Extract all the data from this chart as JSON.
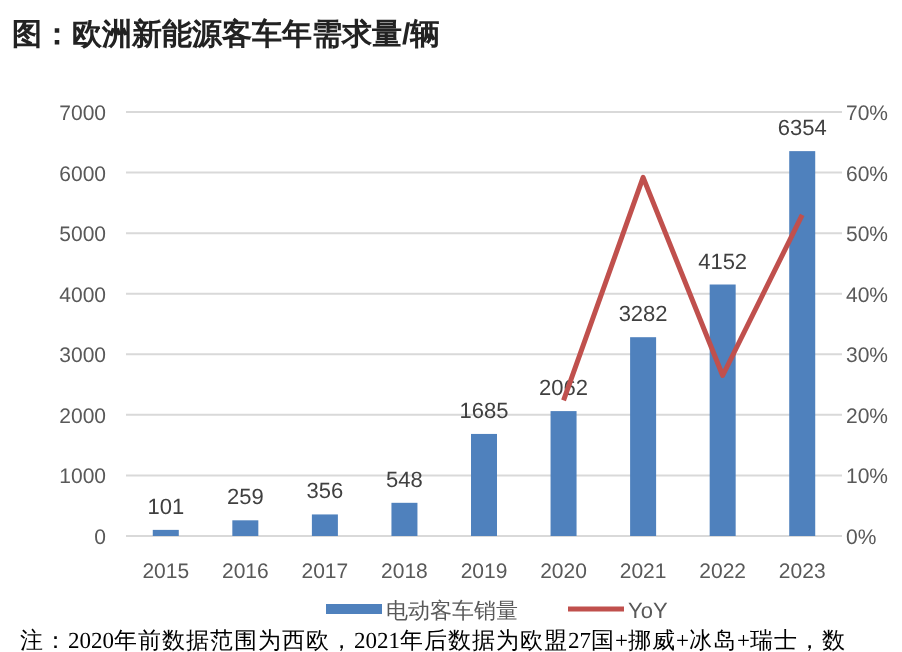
{
  "chart_data": {
    "type": "bar",
    "title": "图：欧洲新能源客车年需求量/辆",
    "categories": [
      "2015",
      "2016",
      "2017",
      "2018",
      "2019",
      "2020",
      "2021",
      "2022",
      "2023"
    ],
    "series": [
      {
        "name": "电动客车销量",
        "color": "#4f81bd",
        "values": [
          101,
          259,
          356,
          548,
          1685,
          2062,
          3282,
          4152,
          6354
        ],
        "value_labels": [
          "101",
          "259",
          "356",
          "548",
          "1685",
          "2062",
          "3282",
          "4152",
          "6354"
        ]
      },
      {
        "name": "YoY",
        "type": "line",
        "axis": "y2",
        "color": "#c0504d",
        "values": [
          null,
          null,
          null,
          null,
          null,
          22.4,
          59.2,
          26.5,
          53.0
        ]
      }
    ],
    "ylim": [
      0,
      7000
    ],
    "yticks": [
      0,
      1000,
      2000,
      3000,
      4000,
      5000,
      6000,
      7000
    ],
    "y2lim": [
      0,
      70
    ],
    "y2ticks": [
      {
        "value": 0,
        "label": "0%"
      },
      {
        "value": 10,
        "label": "10%"
      },
      {
        "value": 20,
        "label": "20%"
      },
      {
        "value": 30,
        "label": "30%"
      },
      {
        "value": 40,
        "label": "40%"
      },
      {
        "value": 50,
        "label": "50%"
      },
      {
        "value": 60,
        "label": "60%"
      },
      {
        "value": 70,
        "label": "70%"
      }
    ],
    "grid": "y",
    "legend": "bottom",
    "line_style": "solid",
    "annotations": [
      "注：2020年前数据范围为西欧，2021年后数据为欧盟27国+挪威+冰岛+瑞士，数"
    ]
  }
}
